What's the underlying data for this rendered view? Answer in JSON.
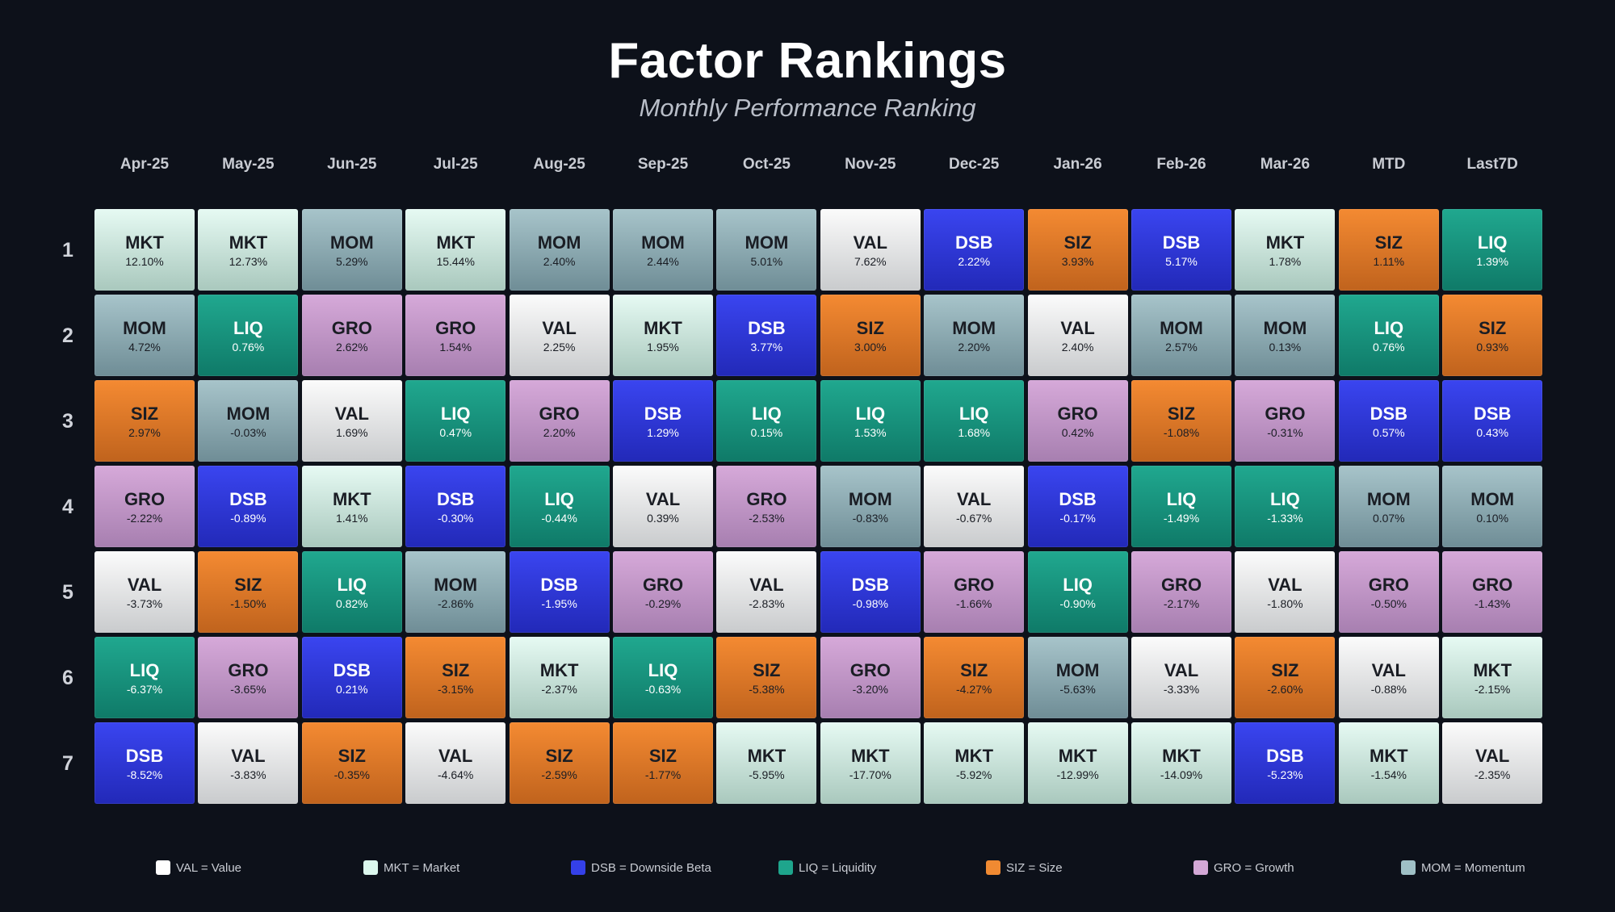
{
  "header": {
    "title": "Factor Rankings",
    "subtitle": "Monthly Performance Ranking"
  },
  "chart_data": {
    "type": "table",
    "title": "Factor Rankings",
    "subtitle": "Monthly Performance Ranking",
    "columns": [
      "Apr-25",
      "May-25",
      "Jun-25",
      "Jul-25",
      "Aug-25",
      "Sep-25",
      "Oct-25",
      "Nov-25",
      "Dec-25",
      "Jan-26",
      "Feb-26",
      "Mar-26",
      "MTD",
      "Last7D"
    ],
    "ranks": [
      "1",
      "2",
      "3",
      "4",
      "5",
      "6",
      "7"
    ],
    "cells": [
      [
        [
          "MKT",
          "12.10%"
        ],
        [
          "MOM",
          "4.72%"
        ],
        [
          "SIZ",
          "2.97%"
        ],
        [
          "GRO",
          "-2.22%"
        ],
        [
          "VAL",
          "-3.73%"
        ],
        [
          "LIQ",
          "-6.37%"
        ],
        [
          "DSB",
          "-8.52%"
        ]
      ],
      [
        [
          "MKT",
          "12.73%"
        ],
        [
          "LIQ",
          "0.76%"
        ],
        [
          "MOM",
          "-0.03%"
        ],
        [
          "DSB",
          "-0.89%"
        ],
        [
          "SIZ",
          "-1.50%"
        ],
        [
          "GRO",
          "-3.65%"
        ],
        [
          "VAL",
          "-3.83%"
        ]
      ],
      [
        [
          "MOM",
          "5.29%"
        ],
        [
          "GRO",
          "2.62%"
        ],
        [
          "VAL",
          "1.69%"
        ],
        [
          "MKT",
          "1.41%"
        ],
        [
          "LIQ",
          "0.82%"
        ],
        [
          "DSB",
          "0.21%"
        ],
        [
          "SIZ",
          "-0.35%"
        ]
      ],
      [
        [
          "MKT",
          "15.44%"
        ],
        [
          "GRO",
          "1.54%"
        ],
        [
          "LIQ",
          "0.47%"
        ],
        [
          "DSB",
          "-0.30%"
        ],
        [
          "MOM",
          "-2.86%"
        ],
        [
          "SIZ",
          "-3.15%"
        ],
        [
          "VAL",
          "-4.64%"
        ]
      ],
      [
        [
          "MOM",
          "2.40%"
        ],
        [
          "VAL",
          "2.25%"
        ],
        [
          "GRO",
          "2.20%"
        ],
        [
          "LIQ",
          "-0.44%"
        ],
        [
          "DSB",
          "-1.95%"
        ],
        [
          "MKT",
          "-2.37%"
        ],
        [
          "SIZ",
          "-2.59%"
        ]
      ],
      [
        [
          "MOM",
          "2.44%"
        ],
        [
          "MKT",
          "1.95%"
        ],
        [
          "DSB",
          "1.29%"
        ],
        [
          "VAL",
          "0.39%"
        ],
        [
          "GRO",
          "-0.29%"
        ],
        [
          "LIQ",
          "-0.63%"
        ],
        [
          "SIZ",
          "-1.77%"
        ]
      ],
      [
        [
          "MOM",
          "5.01%"
        ],
        [
          "DSB",
          "3.77%"
        ],
        [
          "LIQ",
          "0.15%"
        ],
        [
          "GRO",
          "-2.53%"
        ],
        [
          "VAL",
          "-2.83%"
        ],
        [
          "SIZ",
          "-5.38%"
        ],
        [
          "MKT",
          "-5.95%"
        ]
      ],
      [
        [
          "VAL",
          "7.62%"
        ],
        [
          "SIZ",
          "3.00%"
        ],
        [
          "LIQ",
          "1.53%"
        ],
        [
          "MOM",
          "-0.83%"
        ],
        [
          "DSB",
          "-0.98%"
        ],
        [
          "GRO",
          "-3.20%"
        ],
        [
          "MKT",
          "-17.70%"
        ]
      ],
      [
        [
          "DSB",
          "2.22%"
        ],
        [
          "MOM",
          "2.20%"
        ],
        [
          "LIQ",
          "1.68%"
        ],
        [
          "VAL",
          "-0.67%"
        ],
        [
          "GRO",
          "-1.66%"
        ],
        [
          "SIZ",
          "-4.27%"
        ],
        [
          "MKT",
          "-5.92%"
        ]
      ],
      [
        [
          "SIZ",
          "3.93%"
        ],
        [
          "VAL",
          "2.40%"
        ],
        [
          "GRO",
          "0.42%"
        ],
        [
          "DSB",
          "-0.17%"
        ],
        [
          "LIQ",
          "-0.90%"
        ],
        [
          "MOM",
          "-5.63%"
        ],
        [
          "MKT",
          "-12.99%"
        ]
      ],
      [
        [
          "DSB",
          "5.17%"
        ],
        [
          "MOM",
          "2.57%"
        ],
        [
          "SIZ",
          "-1.08%"
        ],
        [
          "LIQ",
          "-1.49%"
        ],
        [
          "GRO",
          "-2.17%"
        ],
        [
          "VAL",
          "-3.33%"
        ],
        [
          "MKT",
          "-14.09%"
        ]
      ],
      [
        [
          "MKT",
          "1.78%"
        ],
        [
          "MOM",
          "0.13%"
        ],
        [
          "GRO",
          "-0.31%"
        ],
        [
          "LIQ",
          "-1.33%"
        ],
        [
          "VAL",
          "-1.80%"
        ],
        [
          "SIZ",
          "-2.60%"
        ],
        [
          "DSB",
          "-5.23%"
        ]
      ],
      [
        [
          "SIZ",
          "1.11%"
        ],
        [
          "LIQ",
          "0.76%"
        ],
        [
          "DSB",
          "0.57%"
        ],
        [
          "MOM",
          "0.07%"
        ],
        [
          "GRO",
          "-0.50%"
        ],
        [
          "VAL",
          "-0.88%"
        ],
        [
          "MKT",
          "-1.54%"
        ]
      ],
      [
        [
          "LIQ",
          "1.39%"
        ],
        [
          "SIZ",
          "0.93%"
        ],
        [
          "DSB",
          "0.43%"
        ],
        [
          "MOM",
          "0.10%"
        ],
        [
          "GRO",
          "-1.43%"
        ],
        [
          "MKT",
          "-2.15%"
        ],
        [
          "VAL",
          "-2.35%"
        ]
      ]
    ],
    "factors": {
      "VAL": {
        "top": "#fbfbfb",
        "bottom": "#c9cbcd",
        "text": "#1a1d24"
      },
      "MKT": {
        "top": "#e6faf3",
        "bottom": "#a9c8bd",
        "text": "#1a1d24"
      },
      "DSB": {
        "top": "#3a45f0",
        "bottom": "#2229b8",
        "text": "#ffffff"
      },
      "LIQ": {
        "top": "#20a88f",
        "bottom": "#0f7a68",
        "text": "#ffffff"
      },
      "SIZ": {
        "top": "#f48a32",
        "bottom": "#c0631d",
        "text": "#1a1d24"
      },
      "GRO": {
        "top": "#d6a9d9",
        "bottom": "#a77fb0",
        "text": "#1a1d24"
      },
      "MOM": {
        "top": "#a7c4ca",
        "bottom": "#6f8d96",
        "text": "#1a1d24"
      }
    },
    "legend": [
      {
        "code": "VAL",
        "label": "VAL = Value",
        "color": "#ffffff"
      },
      {
        "code": "MKT",
        "label": "MKT = Market",
        "color": "#dcf8ee"
      },
      {
        "code": "DSB",
        "label": "DSB = Downside Beta",
        "color": "#3440e8"
      },
      {
        "code": "LIQ",
        "label": "LIQ = Liquidity",
        "color": "#1ea58c"
      },
      {
        "code": "SIZ",
        "label": "SIZ = Size",
        "color": "#f08a32"
      },
      {
        "code": "GRO",
        "label": "GRO = Growth",
        "color": "#d3a8d6"
      },
      {
        "code": "MOM",
        "label": "MOM = Momentum",
        "color": "#9fc0c6"
      }
    ]
  }
}
